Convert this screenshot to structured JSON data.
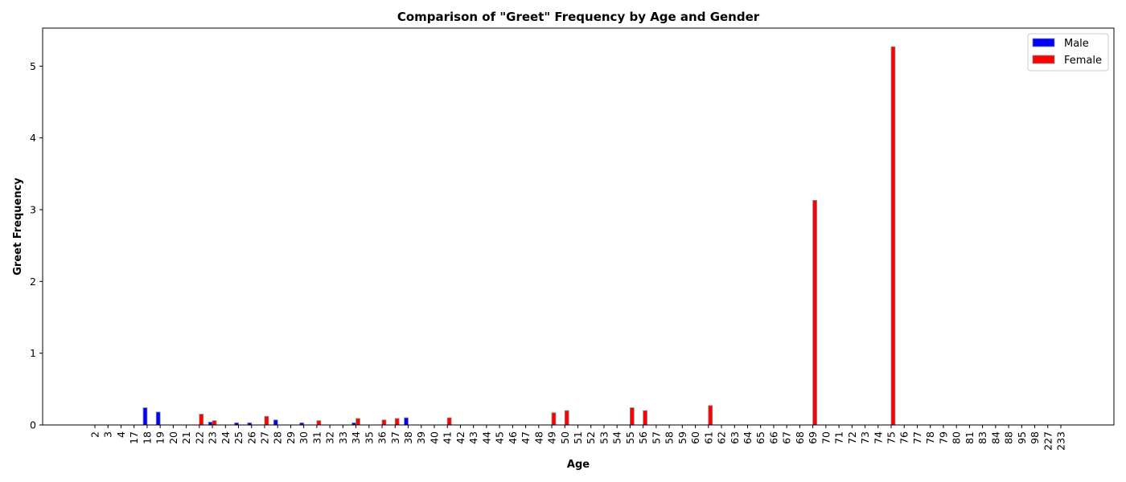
{
  "chart_data": {
    "type": "bar",
    "title": "Comparison of \"Greet\" Frequency by Age and Gender",
    "xlabel": "Age",
    "ylabel": "Greet Frequency",
    "categories": [
      "2",
      "3",
      "4",
      "17",
      "18",
      "19",
      "20",
      "21",
      "22",
      "23",
      "24",
      "25",
      "26",
      "27",
      "28",
      "29",
      "30",
      "31",
      "32",
      "33",
      "34",
      "35",
      "36",
      "37",
      "38",
      "39",
      "40",
      "41",
      "42",
      "43",
      "44",
      "45",
      "46",
      "47",
      "48",
      "49",
      "50",
      "51",
      "52",
      "53",
      "54",
      "55",
      "56",
      "57",
      "58",
      "59",
      "60",
      "61",
      "62",
      "63",
      "64",
      "65",
      "66",
      "67",
      "68",
      "69",
      "70",
      "71",
      "72",
      "73",
      "74",
      "75",
      "76",
      "77",
      "78",
      "79",
      "80",
      "81",
      "83",
      "84",
      "88",
      "95",
      "98",
      "227",
      "233"
    ],
    "series": [
      {
        "name": "Male",
        "color": "#0000ff",
        "values": [
          0,
          0,
          0,
          0,
          0.24,
          0.18,
          0,
          0,
          0,
          0.04,
          0,
          0.03,
          0.03,
          0,
          0.07,
          0,
          0.03,
          0,
          0,
          0,
          0.03,
          0,
          0,
          0,
          0.1,
          0,
          0,
          0,
          0,
          0,
          0,
          0,
          0,
          0,
          0,
          0,
          0,
          0,
          0,
          0,
          0,
          0,
          0,
          0,
          0,
          0,
          0,
          0,
          0,
          0,
          0,
          0,
          0,
          0,
          0,
          0,
          0,
          0,
          0,
          0,
          0,
          0,
          0,
          0,
          0,
          0,
          0,
          0,
          0,
          0,
          0,
          0,
          0,
          0,
          0
        ]
      },
      {
        "name": "Female",
        "color": "#ff0000",
        "values": [
          0,
          0,
          0,
          0,
          0,
          0,
          0,
          0,
          0.15,
          0.06,
          0,
          0,
          0,
          0.12,
          0,
          0,
          0,
          0.06,
          0,
          0,
          0.09,
          0,
          0.07,
          0.09,
          0,
          0,
          0,
          0.1,
          0,
          0,
          0,
          0,
          0,
          0,
          0,
          0.17,
          0.2,
          0,
          0,
          0,
          0,
          0.24,
          0.2,
          0,
          0,
          0,
          0,
          0.27,
          0,
          0,
          0,
          0,
          0,
          0,
          0,
          3.13,
          0,
          0,
          0,
          0,
          0,
          5.27,
          0,
          0,
          0,
          0,
          0,
          0,
          0,
          0,
          0,
          0,
          0,
          0,
          0
        ]
      }
    ],
    "yticks": [
      "0",
      "1",
      "2",
      "3",
      "4",
      "5"
    ],
    "ylim": [
      0,
      5.53
    ],
    "legend_position": "upper right",
    "grid": false
  }
}
